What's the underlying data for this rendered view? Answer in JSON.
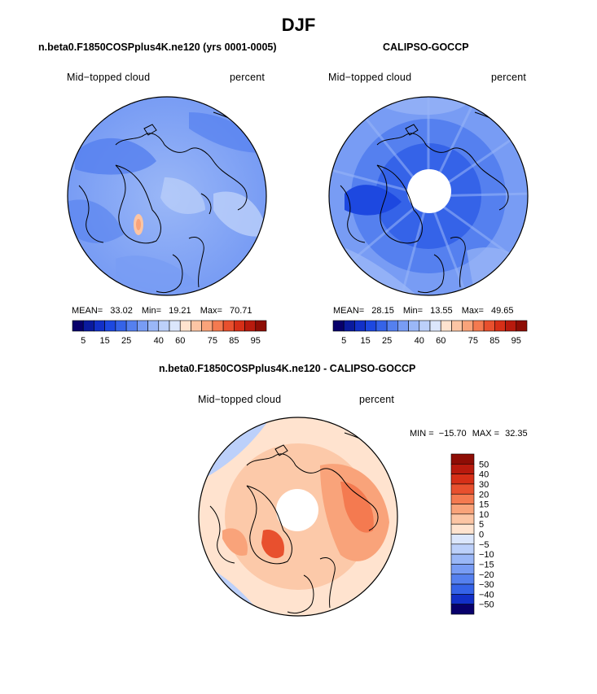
{
  "figure": {
    "title": "DJF"
  },
  "chart_data": [
    {
      "type": "heatmap",
      "projection": "polar-stereographic-north",
      "title": "n.beta0.F1850COSPplus4K.ne120 (yrs 0001-0005)",
      "left_label": "Mid−topped cloud",
      "right_label": "percent",
      "stats": {
        "mean_label": "MEAN=",
        "mean": "33.02",
        "min_label": "Min=",
        "min": "19.21",
        "max_label": "Max=",
        "max": "70.71"
      },
      "colorbar": {
        "levels": [
          5,
          10,
          15,
          20,
          25,
          30,
          35,
          40,
          45,
          50,
          60,
          65,
          70,
          75,
          80,
          85,
          90,
          95
        ],
        "labels": [
          "5",
          "15",
          "25",
          "40",
          "60",
          "75",
          "85",
          "95"
        ],
        "colors": [
          "#08006b",
          "#0a1a9e",
          "#1230c8",
          "#1d48e0",
          "#3563e8",
          "#5580ef",
          "#789cf4",
          "#9ab7f7",
          "#bcd0fa",
          "#dbe6fc",
          "#ffe3cf",
          "#fcc5a4",
          "#f9a37a",
          "#f47a50",
          "#e8502e",
          "#d62f17",
          "#b81a0d",
          "#8e0d05"
        ]
      },
      "description_values": {
        "typical_range": [
          25,
          45
        ],
        "hotspot": 70
      }
    },
    {
      "type": "heatmap",
      "projection": "polar-stereographic-north",
      "title": "CALIPSO-GOCCP",
      "left_label": "Mid−topped cloud",
      "right_label": "percent",
      "stats": {
        "mean_label": "MEAN=",
        "mean": "28.15",
        "min_label": "Min=",
        "min": "13.55",
        "max_label": "Max=",
        "max": "49.65"
      },
      "colorbar": {
        "levels": [
          5,
          10,
          15,
          20,
          25,
          30,
          35,
          40,
          45,
          50,
          60,
          65,
          70,
          75,
          80,
          85,
          90,
          95
        ],
        "labels": [
          "5",
          "15",
          "25",
          "40",
          "60",
          "75",
          "85",
          "95"
        ],
        "colors": [
          "#08006b",
          "#0a1a9e",
          "#1230c8",
          "#1d48e0",
          "#3563e8",
          "#5580ef",
          "#789cf4",
          "#9ab7f7",
          "#bcd0fa",
          "#dbe6fc",
          "#ffe3cf",
          "#fcc5a4",
          "#f9a37a",
          "#f47a50",
          "#e8502e",
          "#d62f17",
          "#b81a0d",
          "#8e0d05"
        ]
      },
      "description_values": {
        "typical_range": [
          15,
          40
        ],
        "missing_polar_cap": true
      }
    },
    {
      "type": "heatmap",
      "projection": "polar-stereographic-north",
      "title": "n.beta0.F1850COSPplus4K.ne120 - CALIPSO-GOCCP",
      "left_label": "Mid−topped cloud",
      "right_label": "percent",
      "stats": {
        "min_label": "MIN =",
        "min": "−15.70",
        "max_label": "MAX =",
        "max": "32.35"
      },
      "colorbar": {
        "orientation": "vertical",
        "labels": [
          "50",
          "40",
          "30",
          "20",
          "15",
          "10",
          "5",
          "0",
          "−5",
          "−10",
          "−15",
          "−20",
          "−30",
          "−40",
          "−50"
        ],
        "colors": [
          "#8e0d05",
          "#b81a0d",
          "#d62f17",
          "#e8502e",
          "#f47a50",
          "#f9a37a",
          "#fcc5a4",
          "#ffe3cf",
          "#dbe6fc",
          "#bcd0fa",
          "#9ab7f7",
          "#789cf4",
          "#5580ef",
          "#3563e8",
          "#1230c8",
          "#08006b"
        ]
      },
      "description_values": {
        "typical_range": [
          -10,
          25
        ],
        "missing_polar_cap": true
      }
    }
  ]
}
